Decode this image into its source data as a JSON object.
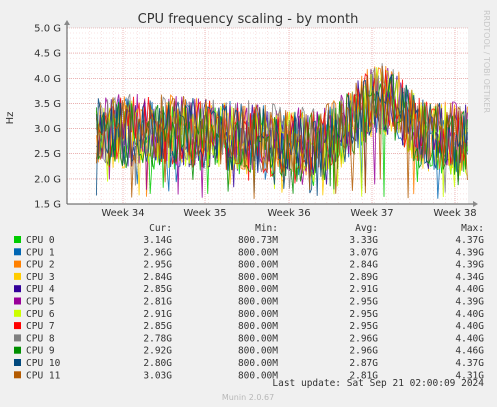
{
  "side_label": "RRDTOOL / TOBI OETIKER",
  "footer": "Munin 2.0.67",
  "last_update": "Last update: Sat Sep 21 02:00:09 2024",
  "table_headers": {
    "cur": "Cur:",
    "min": "Min:",
    "avg": "Avg:",
    "max": "Max:"
  },
  "legend": [
    {
      "name": "CPU 0",
      "color": "#00cc00",
      "cur": "3.14G",
      "min": "800.73M",
      "avg": "3.33G",
      "max": "4.37G"
    },
    {
      "name": "CPU 1",
      "color": "#0066b3",
      "cur": "2.96G",
      "min": "800.00M",
      "avg": "3.07G",
      "max": "4.39G"
    },
    {
      "name": "CPU 2",
      "color": "#ff8000",
      "cur": "2.95G",
      "min": "800.00M",
      "avg": "2.84G",
      "max": "4.39G"
    },
    {
      "name": "CPU 3",
      "color": "#ffcc00",
      "cur": "2.84G",
      "min": "800.00M",
      "avg": "2.89G",
      "max": "4.34G"
    },
    {
      "name": "CPU 4",
      "color": "#330099",
      "cur": "2.85G",
      "min": "800.00M",
      "avg": "2.91G",
      "max": "4.40G"
    },
    {
      "name": "CPU 5",
      "color": "#990099",
      "cur": "2.81G",
      "min": "800.00M",
      "avg": "2.95G",
      "max": "4.39G"
    },
    {
      "name": "CPU 6",
      "color": "#ccff00",
      "cur": "2.91G",
      "min": "800.00M",
      "avg": "2.95G",
      "max": "4.40G"
    },
    {
      "name": "CPU 7",
      "color": "#ff0000",
      "cur": "2.85G",
      "min": "800.00M",
      "avg": "2.95G",
      "max": "4.40G"
    },
    {
      "name": "CPU 8",
      "color": "#808080",
      "cur": "2.78G",
      "min": "800.00M",
      "avg": "2.96G",
      "max": "4.40G"
    },
    {
      "name": "CPU 9",
      "color": "#008f00",
      "cur": "2.92G",
      "min": "800.00M",
      "avg": "2.96G",
      "max": "4.46G"
    },
    {
      "name": "CPU 10",
      "color": "#00487d",
      "cur": "2.80G",
      "min": "800.00M",
      "avg": "2.87G",
      "max": "4.37G"
    },
    {
      "name": "CPU 11",
      "color": "#b35a00",
      "cur": "3.03G",
      "min": "800.00M",
      "avg": "2.81G",
      "max": "4.31G"
    }
  ],
  "chart_data": {
    "type": "line",
    "title": "CPU frequency scaling - by month",
    "ylabel": "Hz",
    "yticks": [
      "1.5 G",
      "2.0 G",
      "2.5 G",
      "3.0 G",
      "3.5 G",
      "4.0 G",
      "4.5 G",
      "5.0 G"
    ],
    "ylim": [
      1.5,
      5.0
    ],
    "xticks": [
      "Week 34",
      "Week 35",
      "Week 36",
      "Week 37",
      "Week 38"
    ],
    "grid": true,
    "series_profile": {
      "x": [
        "Week 33.7",
        "Week 34",
        "Week 35",
        "Week 36",
        "Week 37",
        "Week 38",
        "Week 38.3"
      ],
      "mean": [
        2.9,
        2.95,
        2.9,
        2.7,
        3.6,
        2.8,
        2.8
      ]
    }
  }
}
